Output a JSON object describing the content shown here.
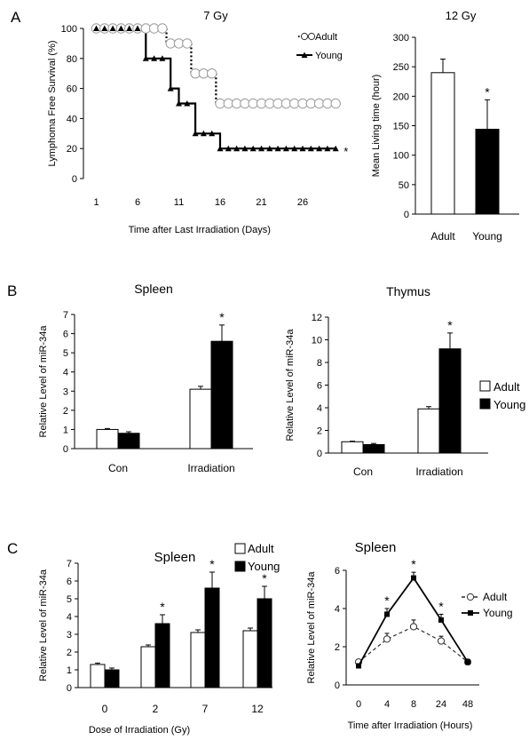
{
  "panel_labels": [
    "A",
    "B",
    "C"
  ],
  "chart_data": [
    {
      "id": "A-left",
      "type": "line",
      "style": "step",
      "title": "7 Gy",
      "xlabel": "Time after Last Irradiation (Days)",
      "ylabel": "Lymphoma Free Survival  (%)",
      "xlim": [
        1,
        31
      ],
      "ylim": [
        0,
        100
      ],
      "xticks": [
        1,
        6,
        11,
        16,
        21,
        26
      ],
      "yticks": [
        0,
        20,
        40,
        60,
        80,
        100
      ],
      "legend": "top-right",
      "annotation": "*",
      "series": [
        {
          "name": "Adult",
          "marker": "open-circle",
          "line": "dotted",
          "x": [
            1,
            2,
            3,
            4,
            5,
            6,
            7,
            8,
            9,
            10,
            11,
            12,
            13,
            14,
            15,
            16,
            17,
            18,
            19,
            20,
            21,
            22,
            23,
            24,
            25,
            26,
            27,
            28,
            29,
            30
          ],
          "y": [
            100,
            100,
            100,
            100,
            100,
            100,
            100,
            100,
            100,
            90,
            90,
            90,
            70,
            70,
            70,
            50,
            50,
            50,
            50,
            50,
            50,
            50,
            50,
            50,
            50,
            50,
            50,
            50,
            50,
            50
          ]
        },
        {
          "name": "Young",
          "marker": "filled-triangle",
          "line": "solid",
          "x": [
            1,
            2,
            3,
            4,
            5,
            6,
            7,
            8,
            9,
            10,
            11,
            12,
            13,
            14,
            15,
            16,
            17,
            18,
            19,
            20,
            21,
            22,
            23,
            24,
            25,
            26,
            27,
            28,
            29,
            30
          ],
          "y": [
            100,
            100,
            100,
            100,
            100,
            100,
            80,
            80,
            80,
            60,
            50,
            50,
            30,
            30,
            30,
            20,
            20,
            20,
            20,
            20,
            20,
            20,
            20,
            20,
            20,
            20,
            20,
            20,
            20,
            20
          ]
        }
      ]
    },
    {
      "id": "A-right",
      "type": "bar",
      "title": "12 Gy",
      "xlabel": "",
      "ylabel": "Mean Living time (hour)",
      "ylim": [
        0,
        300
      ],
      "yticks": [
        0,
        50,
        100,
        150,
        200,
        250,
        300
      ],
      "categories": [
        "Adult",
        "Young"
      ],
      "values": [
        240,
        144
      ],
      "errors": [
        23,
        50
      ],
      "colors": [
        "#ffffff",
        "#000000"
      ],
      "annotations": [
        "",
        "*"
      ]
    },
    {
      "id": "B-left",
      "type": "bar",
      "title": "Spleen",
      "xlabel": "",
      "ylabel": "Relative  Level of miR-34a",
      "ylim": [
        0,
        7
      ],
      "yticks": [
        0,
        1,
        2,
        3,
        4,
        5,
        6,
        7
      ],
      "categories": [
        "Con",
        "Irradiation"
      ],
      "series": [
        {
          "name": "Adult",
          "values": [
            1.0,
            3.1
          ],
          "errors": [
            0.05,
            0.15
          ]
        },
        {
          "name": "Young",
          "values": [
            0.8,
            5.6
          ],
          "errors": [
            0.08,
            0.85
          ]
        }
      ],
      "annotations": [
        "",
        "*"
      ]
    },
    {
      "id": "B-right",
      "type": "bar",
      "title": "Thymus",
      "xlabel": "",
      "ylabel": "Relative  Level of miR-34a",
      "ylim": [
        0,
        12
      ],
      "yticks": [
        0,
        2,
        4,
        6,
        8,
        10,
        12
      ],
      "categories": [
        "Con",
        "Irradiation"
      ],
      "legend": "right",
      "series": [
        {
          "name": "Adult",
          "values": [
            1.0,
            3.9
          ],
          "errors": [
            0.05,
            0.2
          ]
        },
        {
          "name": "Young",
          "values": [
            0.75,
            9.2
          ],
          "errors": [
            0.1,
            1.4
          ]
        }
      ],
      "annotations": [
        "",
        "*"
      ]
    },
    {
      "id": "C-left",
      "type": "bar",
      "title": "Spleen",
      "xlabel": "Dose of Irradiation (Gy)",
      "ylabel": "Relative  Level of miR-34a",
      "ylim": [
        0,
        7
      ],
      "yticks": [
        0,
        1,
        2,
        3,
        4,
        5,
        6,
        7
      ],
      "categories": [
        "0",
        "2",
        "7",
        "12"
      ],
      "legend": "top-right",
      "series": [
        {
          "name": "Adult",
          "values": [
            1.3,
            2.3,
            3.1,
            3.2
          ],
          "errors": [
            0.08,
            0.1,
            0.15,
            0.15
          ]
        },
        {
          "name": "Young",
          "values": [
            1.0,
            3.6,
            5.6,
            5.0
          ],
          "errors": [
            0.1,
            0.5,
            0.9,
            0.7
          ]
        }
      ],
      "annotations": [
        "",
        "*",
        "*",
        "*"
      ]
    },
    {
      "id": "C-right",
      "type": "line",
      "title": "Spleen",
      "xlabel": "Time after Irradiation (Hours)",
      "ylabel": "Relative  Level of miR-34a",
      "ylim": [
        0,
        6
      ],
      "yticks": [
        0,
        2,
        4,
        6
      ],
      "categories": [
        "0",
        "4",
        "8",
        "24",
        "48"
      ],
      "legend": "right",
      "series": [
        {
          "name": "Adult",
          "marker": "open-circle",
          "line": "dashed",
          "values": [
            1.2,
            2.4,
            3.05,
            2.3,
            1.2
          ],
          "errors": [
            0.05,
            0.3,
            0.35,
            0.25,
            0.05
          ]
        },
        {
          "name": "Young",
          "marker": "filled-square",
          "line": "solid",
          "values": [
            1.0,
            3.7,
            5.6,
            3.4,
            1.2
          ],
          "errors": [
            0.05,
            0.3,
            0.3,
            0.3,
            0.05
          ]
        }
      ],
      "annotations": [
        "",
        "*",
        "*",
        "*",
        ""
      ]
    }
  ]
}
